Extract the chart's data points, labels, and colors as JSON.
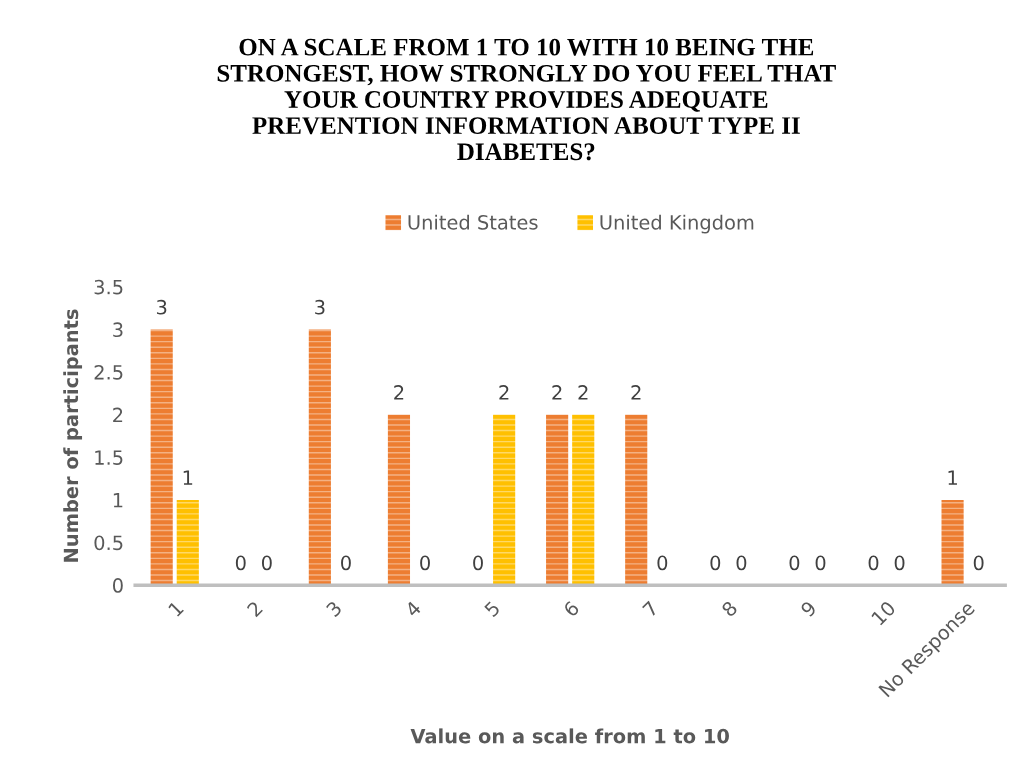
{
  "chart_data": {
    "type": "bar",
    "title": "ON A SCALE FROM 1 TO 10 WITH 10 BEING THE STRONGEST, HOW STRONGLY DO YOU FEEL THAT YOUR COUNTRY PROVIDES ADEQUATE PREVENTION INFORMATION ABOUT TYPE II DIABETES?",
    "xlabel": "Value on a scale from 1 to 10",
    "ylabel": "Number of participants",
    "categories": [
      "1",
      "2",
      "3",
      "4",
      "5",
      "6",
      "7",
      "8",
      "9",
      "10",
      "No Response"
    ],
    "series": [
      {
        "name": "United States",
        "color": "#ed7d31",
        "values": [
          3,
          0,
          3,
          2,
          0,
          2,
          2,
          0,
          0,
          0,
          1
        ]
      },
      {
        "name": "United Kingdom",
        "color": "#ffc000",
        "values": [
          1,
          0,
          0,
          0,
          2,
          2,
          0,
          0,
          0,
          0,
          0
        ]
      }
    ],
    "ylim": [
      0,
      3.5
    ],
    "yticks": [
      0,
      0.5,
      1,
      1.5,
      2,
      2.5,
      3,
      3.5
    ],
    "data_labels": true,
    "legend": "top",
    "grid": false
  }
}
